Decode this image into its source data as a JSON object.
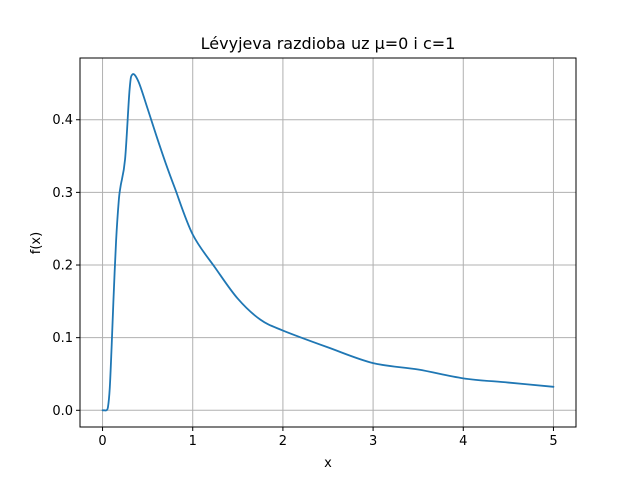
{
  "chart_data": {
    "type": "line",
    "title": "Lévyjeva razdioba uz μ=0 i c=1",
    "xlabel": "x",
    "ylabel": "f(x)",
    "xlim": [
      -0.25,
      5.25
    ],
    "ylim": [
      -0.023,
      0.485
    ],
    "xticks": [
      0,
      1,
      2,
      3,
      4,
      5
    ],
    "xtick_labels": [
      "0",
      "1",
      "2",
      "3",
      "4",
      "5"
    ],
    "yticks": [
      0.0,
      0.1,
      0.2,
      0.3,
      0.4
    ],
    "ytick_labels": [
      "0.0",
      "0.1",
      "0.2",
      "0.3",
      "0.4"
    ],
    "grid": true,
    "series": [
      {
        "color": "#1f77b4",
        "x": [
          0,
          0.02,
          0.04,
          0.06,
          0.08,
          0.1,
          0.12,
          0.15,
          0.18,
          0.2,
          0.25,
          0.3,
          0.333,
          0.4,
          0.5,
          0.6,
          0.7,
          0.8,
          1.0,
          1.25,
          1.5,
          1.75,
          2.0,
          2.5,
          3.0,
          3.5,
          4.0,
          4.5,
          5.0
        ],
        "y": [
          0,
          0,
          0,
          0.0044,
          0.0306,
          0.0854,
          0.1489,
          0.2327,
          0.2887,
          0.3084,
          0.3459,
          0.4418,
          0.4625,
          0.452,
          0.4151,
          0.3768,
          0.3402,
          0.3064,
          0.242,
          0.1961,
          0.1536,
          0.1248,
          0.1098,
          0.0866,
          0.065,
          0.0561,
          0.044,
          0.0382,
          0.0323
        ]
      }
    ]
  }
}
